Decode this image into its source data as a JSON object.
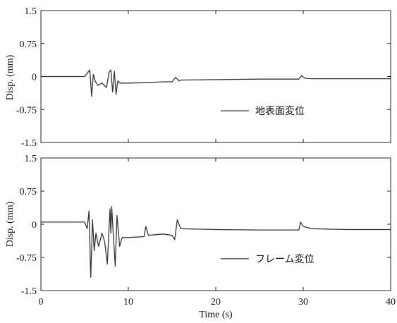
{
  "chart_data": [
    {
      "type": "line",
      "panel": "top",
      "ylabel": "Disp. (mm)",
      "xlabel": "",
      "xlim": [
        0,
        40
      ],
      "ylim": [
        -1.5,
        1.5
      ],
      "yticks": [
        "1.5",
        "0.75",
        "0",
        "-0.75",
        "-1.5"
      ],
      "ytick_values": [
        1.5,
        0.75,
        0,
        -0.75,
        -1.5
      ],
      "xticks": [],
      "legend": "地表面変位",
      "legend_position": "lower-right",
      "grid": false,
      "series": [
        {
          "name": "地表面変位",
          "color": "#333333",
          "x": [
            0,
            5.0,
            5.4,
            5.6,
            5.8,
            6.0,
            6.2,
            6.5,
            7.0,
            7.5,
            7.8,
            8.0,
            8.2,
            8.4,
            8.6,
            8.8,
            9.0,
            9.5,
            10,
            12,
            14,
            15.0,
            15.4,
            15.8,
            16,
            20,
            25,
            29.5,
            29.8,
            30.2,
            31,
            35,
            40
          ],
          "y": [
            0,
            0,
            0.1,
            0.15,
            -0.45,
            0.05,
            -0.1,
            -0.2,
            -0.15,
            -0.25,
            0.1,
            0.15,
            -0.35,
            0.12,
            -0.4,
            -0.1,
            -0.15,
            -0.15,
            -0.15,
            -0.14,
            -0.12,
            -0.12,
            -0.02,
            -0.1,
            -0.08,
            -0.07,
            -0.06,
            -0.06,
            0.02,
            -0.04,
            -0.05,
            -0.05,
            -0.05
          ]
        }
      ]
    },
    {
      "type": "line",
      "panel": "bottom",
      "ylabel": "Disp. (mm)",
      "xlabel": "Time (s)",
      "xlim": [
        0,
        40
      ],
      "ylim": [
        -1.5,
        1.5
      ],
      "yticks": [
        "1.5",
        "0.75",
        "0",
        "-0.75",
        "-1.5"
      ],
      "ytick_values": [
        1.5,
        0.75,
        0,
        -0.75,
        -1.5
      ],
      "xticks": [
        "0",
        "10",
        "20",
        "30",
        "40"
      ],
      "xtick_values": [
        0,
        10,
        20,
        30,
        40
      ],
      "legend": "フレーム変位",
      "legend_position": "lower-right",
      "grid": false,
      "series": [
        {
          "name": "フレーム変位",
          "color": "#333333",
          "x": [
            0,
            5.0,
            5.3,
            5.5,
            5.7,
            5.9,
            6.1,
            6.3,
            6.6,
            7.0,
            7.3,
            7.6,
            7.9,
            8.0,
            8.1,
            8.3,
            8.5,
            8.7,
            9.0,
            9.3,
            10,
            11.8,
            12.0,
            12.3,
            14,
            15.0,
            15.3,
            15.6,
            16,
            20,
            25,
            29.5,
            29.7,
            30.0,
            31,
            35,
            40
          ],
          "y": [
            0.05,
            0.05,
            -0.1,
            0.3,
            -1.2,
            0.1,
            -0.6,
            -0.2,
            -0.5,
            -0.2,
            -0.4,
            -0.9,
            0.35,
            -0.2,
            0.4,
            -0.3,
            -0.95,
            0.2,
            -0.5,
            -0.3,
            -0.3,
            -0.28,
            -0.05,
            -0.25,
            -0.22,
            -0.25,
            -0.35,
            0.1,
            -0.1,
            -0.12,
            -0.13,
            -0.13,
            0.05,
            -0.05,
            -0.1,
            -0.12,
            -0.12
          ]
        }
      ]
    }
  ]
}
